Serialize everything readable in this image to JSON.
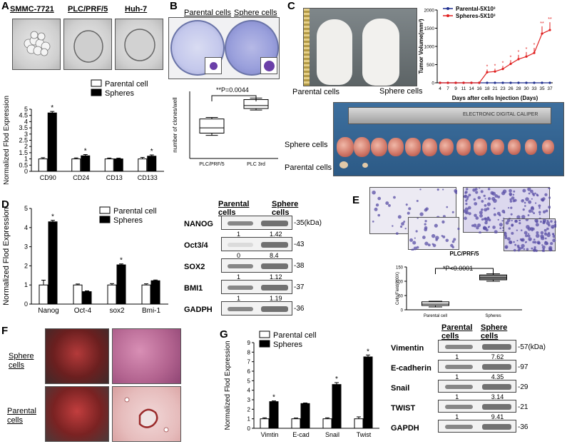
{
  "panelA": {
    "letter": "A",
    "cell_lines": [
      "SMMC-7721",
      "PLC/PRF/5",
      "Huh-7"
    ],
    "legend": [
      "Parental cell",
      "Spheres"
    ],
    "asterisk": "*"
  },
  "panelB": {
    "letter": "B",
    "photo_labels": [
      "Parental cells",
      "Sphere cells"
    ],
    "pvalue": "**P=0.0044"
  },
  "panelC": {
    "letter": "C",
    "mouse_labels": [
      "Parental cells",
      "Sphere cells"
    ],
    "tumor_labels": [
      "Sphere cells",
      "Parental cells"
    ],
    "caliper_text": "ELECTRONIC DIGITAL CALIPER"
  },
  "panelD": {
    "letter": "D",
    "legend": [
      "Parental cell",
      "Spheres"
    ],
    "wb_headers": [
      "Parental cells",
      "Sphere cells"
    ],
    "wb_unit": "35(kDa)",
    "wb_rows": [
      {
        "name": "NANOG",
        "kda": "35(kDa)",
        "v1": "1",
        "v2": "1.42"
      },
      {
        "name": "Oct3/4",
        "kda": "43",
        "v1": "0",
        "v2": "8.4"
      },
      {
        "name": "SOX2",
        "kda": "38",
        "v1": "1",
        "v2": "1.12"
      },
      {
        "name": "BMI1",
        "kda": "37",
        "v1": "1",
        "v2": "1.19"
      },
      {
        "name": "GADPH",
        "kda": "36",
        "v1": "",
        "v2": ""
      }
    ]
  },
  "panelE": {
    "letter": "E",
    "pvalue": "*P<0.0001"
  },
  "panelF": {
    "letter": "F",
    "labels": [
      "Sphere cells",
      "Parental cells"
    ]
  },
  "panelG": {
    "letter": "G",
    "legend": [
      "Parental cell",
      "Spheres"
    ],
    "wb_headers": [
      "Parental cells",
      "Sphere cells"
    ],
    "wb_rows": [
      {
        "name": "Vimentin",
        "kda": "57(kDa)",
        "v1": "1",
        "v2": "7.62"
      },
      {
        "name": "E-cadherin",
        "kda": "97",
        "v1": "1",
        "v2": "4.35"
      },
      {
        "name": "Snail",
        "kda": "29",
        "v1": "1",
        "v2": "3.14"
      },
      {
        "name": "TWIST",
        "kda": "21",
        "v1": "1",
        "v2": "9.41"
      },
      {
        "name": "GAPDH",
        "kda": "36",
        "v1": "",
        "v2": ""
      }
    ]
  },
  "chart_data": [
    {
      "id": "A-qpcr",
      "type": "bar",
      "title": "",
      "xlabel": "",
      "ylabel": "Normalized Flod Expression",
      "categories": [
        "CD90",
        "CD24",
        "CD13",
        "CD133"
      ],
      "series": [
        {
          "name": "Parental cell",
          "values": [
            1.0,
            1.0,
            1.0,
            1.0
          ],
          "err": [
            0.1,
            0.08,
            0.07,
            0.12
          ]
        },
        {
          "name": "Spheres",
          "values": [
            4.7,
            1.25,
            1.0,
            1.22
          ],
          "err": [
            0.12,
            0.1,
            0.06,
            0.1
          ]
        }
      ],
      "ylim": [
        0,
        5
      ],
      "yticks": [
        "0",
        "0.5",
        "1",
        "1.5",
        "2",
        "2.5",
        "3",
        "3.5",
        "4",
        "4.5",
        "5"
      ],
      "significant": [
        true,
        true,
        false,
        true
      ]
    },
    {
      "id": "B-box",
      "type": "box",
      "ylabel": "number of clones/well",
      "categories": [
        "PLC/PRF/5",
        "PLC 3rd"
      ],
      "boxes": [
        {
          "min": 155,
          "q1": 170,
          "median": 205,
          "q3": 265,
          "max": 275
        },
        {
          "min": 325,
          "q1": 335,
          "median": 355,
          "q3": 395,
          "max": 405
        }
      ],
      "ylim": [
        0,
        450
      ]
    },
    {
      "id": "C-growth",
      "type": "line",
      "xlabel": "Days after cells Injection (Days)",
      "ylabel": "Tumor Volume(mm³)",
      "x": [
        4,
        7,
        9,
        11,
        14,
        16,
        18,
        21,
        23,
        26,
        28,
        30,
        33,
        35,
        37
      ],
      "xticks": [
        "4",
        "7",
        "9",
        "11",
        "14",
        "16",
        "18",
        "21",
        "23",
        "26",
        "28",
        "30",
        "33",
        "35",
        "37"
      ],
      "series": [
        {
          "name": "Parental-5X10³",
          "color": "#1f2f8f",
          "values": [
            0,
            0,
            0,
            0,
            0,
            0,
            0,
            0,
            0,
            0,
            0,
            0,
            0,
            0,
            0
          ]
        },
        {
          "name": "Spheres-5X10³",
          "color": "#e02020",
          "values": [
            0,
            0,
            0,
            0,
            0,
            0,
            290,
            310,
            380,
            520,
            650,
            720,
            820,
            1350,
            1450
          ]
        }
      ],
      "ylim": [
        0,
        2000
      ],
      "yticks": [
        "0",
        "500",
        "1000",
        "1500",
        "2000"
      ]
    },
    {
      "id": "D-qpcr",
      "type": "bar",
      "ylabel": "Normalized Flod Expression",
      "categories": [
        "Nanog",
        "Oct-4",
        "sox2",
        "Bmi-1"
      ],
      "series": [
        {
          "name": "Parental cell",
          "values": [
            1.0,
            1.0,
            1.0,
            1.0
          ],
          "err": [
            0.25,
            0.05,
            0.07,
            0.06
          ]
        },
        {
          "name": "Spheres",
          "values": [
            4.3,
            0.65,
            2.05,
            1.22
          ],
          "err": [
            0.08,
            0.04,
            0.05,
            0.04
          ]
        }
      ],
      "ylim": [
        0,
        5
      ],
      "yticks": [
        "0",
        "1",
        "2",
        "3",
        "4",
        "5"
      ],
      "significant": [
        true,
        false,
        true,
        false
      ]
    },
    {
      "id": "E-box",
      "type": "box",
      "title": "PLC/PRF/5",
      "ylabel": "Cells/Field(200X)",
      "categories": [
        "Parental cell",
        "Spheres"
      ],
      "boxes": [
        {
          "min": 10,
          "q1": 15,
          "median": 20,
          "q3": 28,
          "max": 30
        },
        {
          "min": 100,
          "q1": 105,
          "median": 112,
          "q3": 122,
          "max": 126
        }
      ],
      "ylim": [
        0,
        150
      ],
      "yticks": [
        "0",
        "50",
        "100",
        "150"
      ]
    },
    {
      "id": "G-qpcr",
      "type": "bar",
      "ylabel": "Normalized Flod Expression",
      "categories": [
        "Vimtin",
        "E-cad",
        "Snail",
        "Twist"
      ],
      "series": [
        {
          "name": "Parental cell",
          "values": [
            1.0,
            1.0,
            1.0,
            1.0
          ],
          "err": [
            0.1,
            0.08,
            0.1,
            0.2
          ]
        },
        {
          "name": "Spheres",
          "values": [
            2.8,
            2.6,
            4.6,
            7.5
          ],
          "err": [
            0.08,
            0.06,
            0.2,
            0.2
          ]
        }
      ],
      "ylim": [
        0,
        9
      ],
      "yticks": [
        "0",
        "1",
        "2",
        "3",
        "4",
        "5",
        "6",
        "7",
        "8",
        "9"
      ],
      "significant": [
        true,
        false,
        true,
        true
      ]
    }
  ]
}
